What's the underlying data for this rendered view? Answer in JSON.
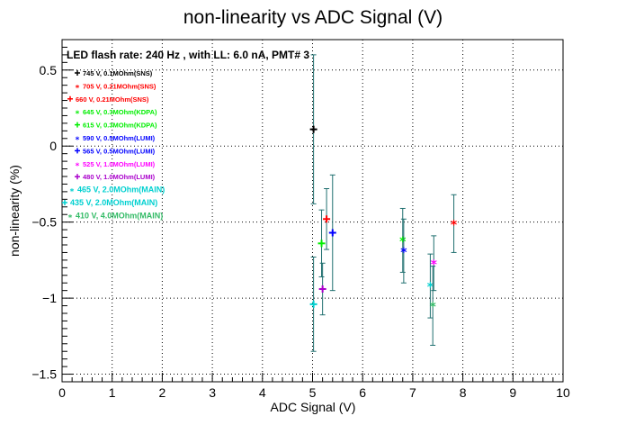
{
  "chart_data": {
    "type": "scatter",
    "title": "non-linearity vs ADC Signal (V)",
    "xlabel": "ADC Signal (V)",
    "ylabel": "non-linearity (%)",
    "xlim": [
      0,
      10
    ],
    "ylim": [
      -1.55,
      0.7
    ],
    "x_ticks": [
      0,
      1,
      2,
      3,
      4,
      5,
      6,
      7,
      8,
      9,
      10
    ],
    "y_ticks": [
      0.5,
      0,
      -0.5,
      -1,
      -1.5
    ],
    "x_tick_labels": [
      "0",
      "1",
      "2",
      "3",
      "4",
      "5",
      "6",
      "7",
      "8",
      "9",
      "10"
    ],
    "y_tick_labels": [
      "0.5",
      "0",
      "−0.5",
      "−1",
      "−1.5"
    ],
    "grid": true,
    "header": "LED flash rate: 240 Hz , with LL: 6.0 nA, PMT# 3",
    "legend_position": "top-left",
    "series": [
      {
        "name": "745 V, 0.1MOhm(SNS)",
        "color": "#000000",
        "marker": "+",
        "points": [
          {
            "x": 5.02,
            "y": 0.11,
            "yerr": 0.49
          }
        ]
      },
      {
        "name": "705 V, 0.21MOhm(SNS)",
        "color": "#ff0000",
        "marker": "*",
        "points": [
          {
            "x": 7.82,
            "y": -0.51,
            "yerr": 0.19
          }
        ]
      },
      {
        "name": "660 V, 0.21MOhm(SNS)",
        "color": "#ff0000",
        "marker": "+",
        "points": [
          {
            "x": 5.28,
            "y": -0.48,
            "yerr": 0.2
          }
        ]
      },
      {
        "name": "645 V, 0.3MOhm(KDPA)",
        "color": "#00ee00",
        "marker": "*",
        "points": [
          {
            "x": 6.8,
            "y": -0.62,
            "yerr": 0.21
          }
        ]
      },
      {
        "name": "615 V, 0.3MOhm(KDPA)",
        "color": "#00ee00",
        "marker": "+",
        "points": [
          {
            "x": 5.18,
            "y": -0.64,
            "yerr": 0.22
          }
        ]
      },
      {
        "name": "590 V, 0.5MOhm(LUMI)",
        "color": "#0000ff",
        "marker": "*",
        "points": [
          {
            "x": 6.82,
            "y": -0.69,
            "yerr": 0.21
          }
        ]
      },
      {
        "name": "565 V, 0.5MOhm(LUMI)",
        "color": "#0000ff",
        "marker": "+",
        "points": [
          {
            "x": 5.4,
            "y": -0.57,
            "yerr": 0.38
          }
        ]
      },
      {
        "name": "525 V, 1.0MOhm(LUMI)",
        "color": "#ff00ff",
        "marker": "*",
        "points": [
          {
            "x": 7.42,
            "y": -0.77,
            "yerr": 0.18
          }
        ]
      },
      {
        "name": "480 V, 1.0MOhm(LUMI)",
        "color": "#aa00cc",
        "marker": "+",
        "points": [
          {
            "x": 5.2,
            "y": -0.94,
            "yerr": 0.17
          }
        ]
      },
      {
        "name": "465 V, 2.0MOhm(MAIN)",
        "color": "#00d0d0",
        "marker": "*",
        "points": [
          {
            "x": 7.35,
            "y": -0.92,
            "yerr": 0.21
          }
        ]
      },
      {
        "name": "435 V, 2.0MOhm(MAIN)",
        "color": "#00d0d0",
        "marker": "+",
        "points": [
          {
            "x": 5.02,
            "y": -1.04,
            "yerr": 0.31
          }
        ]
      },
      {
        "name": "410 V, 4.0MOhm(MAIN)",
        "color": "#33bb66",
        "marker": "*",
        "points": [
          {
            "x": 7.4,
            "y": -1.05,
            "yerr": 0.26
          }
        ]
      }
    ]
  }
}
